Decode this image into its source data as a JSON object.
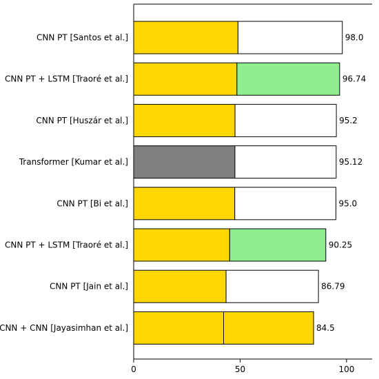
{
  "chart_data": {
    "type": "bar",
    "orientation": "horizontal",
    "title": "",
    "xlabel": "",
    "ylabel": "",
    "xlim": [
      0,
      112
    ],
    "xticks": [
      0,
      50,
      100
    ],
    "grid": false,
    "categories": [
      "CNN PT [Santos et al.]",
      "CNN PT + LSTM [Traoré et al.]",
      "CNN PT [Huszár et al.]",
      "Transformer [Kumar et al.]",
      "CNN PT [Bi et al.]",
      "CNN PT + LSTM [Traoré et al.]",
      "CNN PT [Jain et al.]",
      "CNN + CNN [Jayasimhan et al.]"
    ],
    "values": [
      98.0,
      96.74,
      95.2,
      95.12,
      95.0,
      90.25,
      86.79,
      84.5
    ],
    "value_labels": [
      "98.0",
      "96.74",
      "95.2",
      "95.12",
      "95.0",
      "90.25",
      "86.79",
      "84.5"
    ],
    "components": [
      [
        {
          "value": 49.0,
          "color": "#FFD700"
        },
        {
          "value": 49.0,
          "color": "#FFFFFF"
        }
      ],
      [
        {
          "value": 48.5,
          "color": "#FFD700"
        },
        {
          "value": 48.24,
          "color": "#90EE90"
        }
      ],
      [
        {
          "value": 47.6,
          "color": "#FFD700"
        },
        {
          "value": 47.6,
          "color": "#FFFFFF"
        }
      ],
      [
        {
          "value": 47.56,
          "color": "#808080"
        },
        {
          "value": 47.56,
          "color": "#FFFFFF"
        }
      ],
      [
        {
          "value": 47.5,
          "color": "#FFD700"
        },
        {
          "value": 47.5,
          "color": "#FFFFFF"
        }
      ],
      [
        {
          "value": 45.1,
          "color": "#FFD700"
        },
        {
          "value": 45.15,
          "color": "#90EE90"
        }
      ],
      [
        {
          "value": 43.4,
          "color": "#FFD700"
        },
        {
          "value": 43.39,
          "color": "#FFFFFF"
        }
      ],
      [
        {
          "value": 42.25,
          "color": "#FFD700"
        },
        {
          "value": 42.25,
          "color": "#FFD700"
        }
      ]
    ],
    "colors": {
      "yellow": "#FFD700",
      "green": "#90EE90",
      "gray": "#808080",
      "white": "#FFFFFF",
      "edge": "#000000"
    }
  }
}
